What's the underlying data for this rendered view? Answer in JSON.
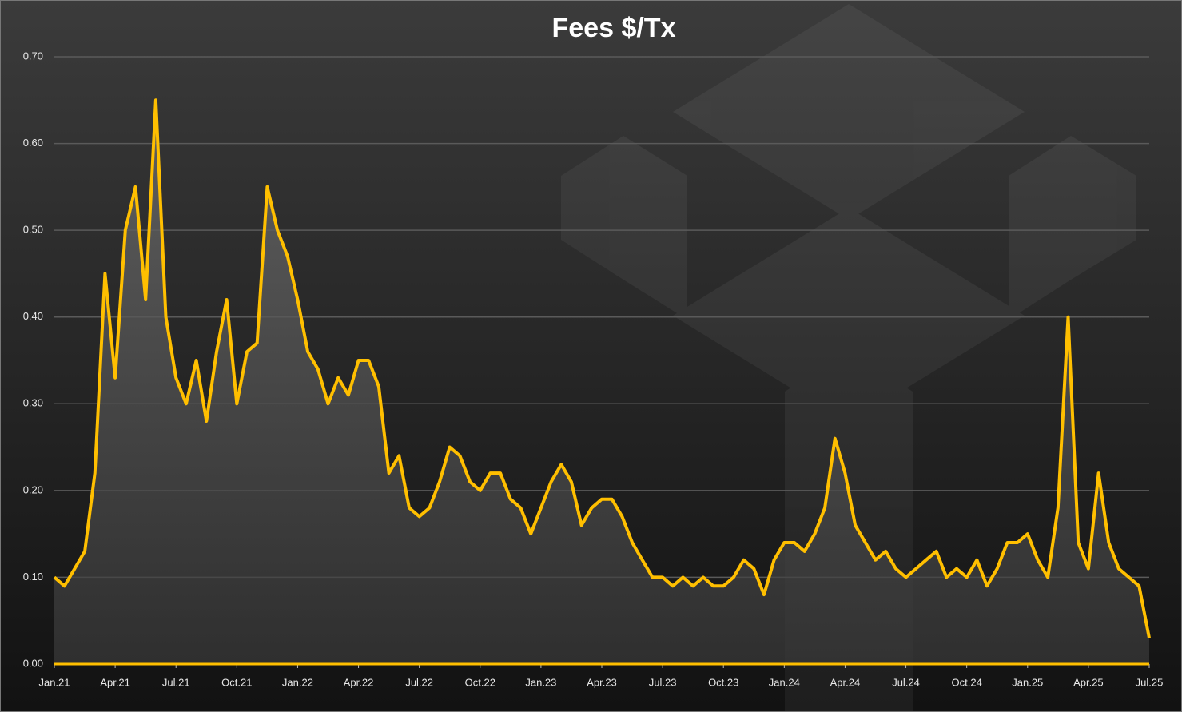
{
  "chart_data": {
    "type": "area",
    "title": "Fees $/Tx",
    "categories": [
      "Jan.21",
      null,
      null,
      null,
      null,
      null,
      "Apr.21",
      null,
      null,
      null,
      null,
      null,
      "Jul.21",
      null,
      null,
      null,
      null,
      null,
      "Oct.21",
      null,
      null,
      null,
      null,
      null,
      "Jan.22",
      null,
      null,
      null,
      null,
      null,
      "Apr.22",
      null,
      null,
      null,
      null,
      null,
      "Jul.22",
      null,
      null,
      null,
      null,
      null,
      "Oct.22",
      null,
      null,
      null,
      null,
      null,
      "Jan.23",
      null,
      null,
      null,
      null,
      null,
      "Apr.23",
      null,
      null,
      null,
      null,
      null,
      "Jul.23",
      null,
      null,
      null,
      null,
      null,
      "Oct.23",
      null,
      null,
      null,
      null,
      null,
      "Jan.24",
      null,
      null,
      null,
      null,
      null,
      "Apr.24",
      null,
      null,
      null,
      null,
      null,
      "Jul.24",
      null,
      null,
      null,
      null,
      null,
      "Oct.24",
      null,
      null,
      null,
      null,
      null,
      "Jan.25",
      null,
      null,
      null,
      null,
      null,
      "Apr.25",
      null,
      null,
      null,
      null,
      null,
      "Jul.25"
    ],
    "values": [
      0.1,
      0.09,
      0.11,
      0.13,
      0.22,
      0.45,
      0.33,
      0.5,
      0.55,
      0.42,
      0.65,
      0.4,
      0.33,
      0.3,
      0.35,
      0.28,
      0.36,
      0.42,
      0.3,
      0.36,
      0.37,
      0.55,
      0.5,
      0.47,
      0.42,
      0.36,
      0.34,
      0.3,
      0.33,
      0.31,
      0.35,
      0.35,
      0.32,
      0.22,
      0.24,
      0.18,
      0.17,
      0.18,
      0.21,
      0.25,
      0.24,
      0.21,
      0.2,
      0.22,
      0.22,
      0.19,
      0.18,
      0.15,
      0.18,
      0.21,
      0.23,
      0.21,
      0.16,
      0.18,
      0.19,
      0.19,
      0.17,
      0.14,
      0.12,
      0.1,
      0.1,
      0.09,
      0.1,
      0.09,
      0.1,
      0.09,
      0.09,
      0.1,
      0.12,
      0.11,
      0.08,
      0.12,
      0.14,
      0.14,
      0.13,
      0.15,
      0.18,
      0.26,
      0.22,
      0.16,
      0.14,
      0.12,
      0.13,
      0.11,
      0.1,
      0.11,
      0.12,
      0.13,
      0.1,
      0.11,
      0.1,
      0.12,
      0.09,
      0.11,
      0.14,
      0.14,
      0.15,
      0.12,
      0.1,
      0.18,
      0.4,
      0.14,
      0.11,
      0.22,
      0.14,
      0.11,
      0.1,
      0.09,
      0.03
    ],
    "color": "#ffbf00",
    "ylim": [
      0,
      0.7
    ],
    "yticks": [
      {
        "value": 0,
        "label": "0.00"
      },
      {
        "value": 0.1,
        "label": "0.10"
      },
      {
        "value": 0.2,
        "label": "0.20"
      },
      {
        "value": 0.3,
        "label": "0.30"
      },
      {
        "value": 0.4,
        "label": "0.40"
      },
      {
        "value": 0.5,
        "label": "0.50"
      },
      {
        "value": 0.6,
        "label": "0.60"
      },
      {
        "value": 0.7,
        "label": "0.70"
      }
    ],
    "grid": true
  }
}
